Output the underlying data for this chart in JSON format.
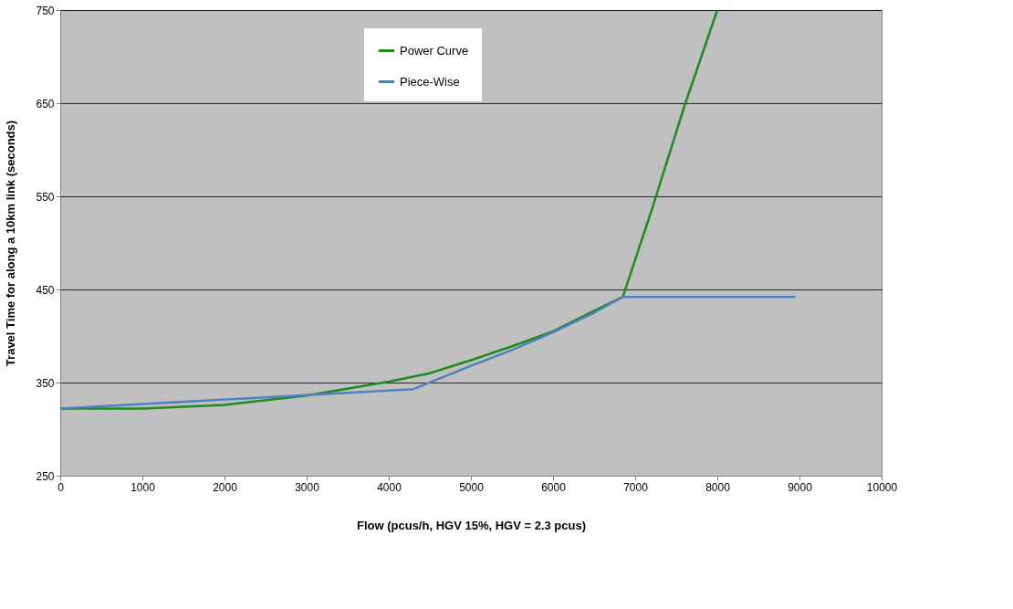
{
  "chart_data": {
    "type": "line",
    "xlabel": "Flow (pcus/h,  HGV 15%, HGV = 2.3 pcus)",
    "ylabel": "Travel Time for along a 10km link (seconds)",
    "xlim": [
      0,
      10000
    ],
    "xticks": [
      0,
      1000,
      2000,
      3000,
      4000,
      5000,
      6000,
      7000,
      8000,
      9000,
      10000
    ],
    "ylim": [
      250,
      750
    ],
    "yticks": [
      250,
      350,
      450,
      550,
      650,
      750
    ],
    "grid": "y",
    "legend": "top",
    "marker": "none",
    "line_style": "solid",
    "series": [
      {
        "name": "Power Curve",
        "color": "#1f8a1f",
        "x": [
          0,
          1000,
          2000,
          3000,
          4000,
          4500,
          5000,
          5500,
          6000,
          6500,
          6850,
          7200,
          7600,
          8000
        ],
        "values": [
          322,
          322,
          326,
          336,
          351,
          360,
          374,
          389,
          405,
          427,
          442,
          535,
          647,
          750
        ]
      },
      {
        "name": "Piece-Wise",
        "color": "#4f81bd",
        "x": [
          0,
          4300,
          5000,
          5500,
          6000,
          6500,
          6850,
          8950
        ],
        "values": [
          322,
          343,
          368,
          385,
          404,
          425,
          442,
          442
        ]
      }
    ]
  }
}
